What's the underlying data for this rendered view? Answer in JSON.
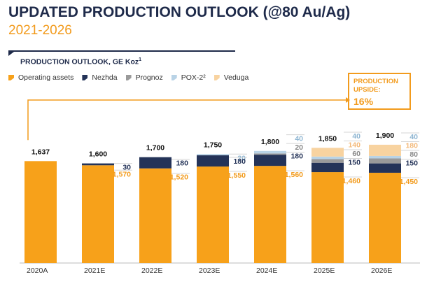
{
  "header": {
    "title": "UPDATED PRODUCTION OUTLOOK (@80 Au/Ag)",
    "subtitle": "2021-2026",
    "chart_heading": "PRODUCTION OUTLOOK, GE Koz",
    "chart_heading_sup": "1"
  },
  "upside_box": {
    "label_line1": "PRODUCTION",
    "label_line2": "UPSIDE:",
    "value": "16%"
  },
  "colors": {
    "operating_assets": "#f7a11a",
    "nezhda": "#243358",
    "prognoz": "#9a9a9a",
    "pox2": "#b9d3e6",
    "veduga": "#f8d3a0",
    "title": "#1e2a4a",
    "accent": "#f29b1d"
  },
  "chart_data": {
    "type": "bar",
    "stacked": true,
    "title": "PRODUCTION OUTLOOK, GE Koz¹",
    "categories": [
      "2020A",
      "2021E",
      "2022E",
      "2023E",
      "2024E",
      "2025E",
      "2026E"
    ],
    "totals": [
      "1,637",
      "1,600",
      "1,700",
      "1,750",
      "1,800",
      "1,850",
      "1,900"
    ],
    "series": [
      {
        "name": "Operating assets",
        "key": "operating_assets",
        "values": [
          1637,
          1570,
          1520,
          1550,
          1560,
          1460,
          1450
        ]
      },
      {
        "name": "Nezhda",
        "key": "nezhda",
        "values": [
          0,
          30,
          180,
          180,
          180,
          150,
          150
        ]
      },
      {
        "name": "Prognoz",
        "key": "prognoz",
        "values": [
          0,
          0,
          0,
          0,
          20,
          60,
          80
        ]
      },
      {
        "name": "POX-2²",
        "key": "pox2",
        "values": [
          0,
          0,
          0,
          20,
          40,
          40,
          40
        ]
      },
      {
        "name": "Veduga",
        "key": "veduga",
        "values": [
          0,
          0,
          0,
          0,
          0,
          140,
          180
        ]
      }
    ],
    "labels": [
      [],
      [
        {
          "key": "nezhda",
          "text": "30"
        },
        {
          "key": "operating_assets",
          "text": "1,570"
        }
      ],
      [
        {
          "key": "nezhda",
          "text": "180"
        },
        {
          "key": "operating_assets",
          "text": "1,520"
        }
      ],
      [
        {
          "key": "pox2",
          "text": "20"
        },
        {
          "key": "nezhda",
          "text": "180"
        },
        {
          "key": "operating_assets",
          "text": "1,550"
        }
      ],
      [
        {
          "key": "pox2",
          "text": "40"
        },
        {
          "key": "prognoz",
          "text": "20"
        },
        {
          "key": "nezhda",
          "text": "180"
        },
        {
          "key": "operating_assets",
          "text": "1,560"
        }
      ],
      [
        {
          "key": "pox2",
          "text": "40"
        },
        {
          "key": "veduga",
          "text": "140"
        },
        {
          "key": "prognoz",
          "text": "60"
        },
        {
          "key": "nezhda",
          "text": "150"
        },
        {
          "key": "operating_assets",
          "text": "1,460"
        }
      ],
      [
        {
          "key": "pox2",
          "text": "40"
        },
        {
          "key": "veduga",
          "text": "180"
        },
        {
          "key": "prognoz",
          "text": "80"
        },
        {
          "key": "nezhda",
          "text": "150"
        },
        {
          "key": "operating_assets",
          "text": "1,450"
        }
      ]
    ],
    "ylim": [
      0,
      1900
    ],
    "grid": false,
    "legend_position": "top-left"
  }
}
